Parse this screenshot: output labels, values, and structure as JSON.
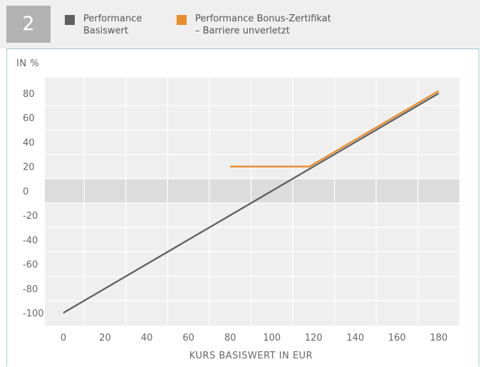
{
  "panel_number": "2",
  "legend": [
    {
      "lines": [
        "Performance",
        "Basiswert"
      ],
      "color": "#5f5f5f"
    },
    {
      "lines": [
        "Performance Bonus-Zertifikat",
        "– Barriere unverletzt"
      ],
      "color": "#e98b2a"
    }
  ],
  "chart_data": {
    "type": "line",
    "ylabel": "IN %",
    "xlabel": "KURS BASISWERT IN EUR",
    "xlim": [
      0,
      180
    ],
    "ylim": [
      -100,
      80
    ],
    "x_ticks": [
      "0",
      "20",
      "40",
      "60",
      "80",
      "100",
      "120",
      "140",
      "160",
      "180"
    ],
    "y_ticks": [
      "80",
      "60",
      "40",
      "20",
      "0",
      "-20",
      "-40",
      "-60",
      "-80",
      "-100"
    ],
    "series": [
      {
        "name": "Performance Basiswert",
        "color": "#5f5f5f",
        "points": [
          [
            0,
            -100
          ],
          [
            180,
            80
          ]
        ]
      },
      {
        "name": "Performance Bonus-Zertifikat – Barriere unverletzt",
        "color": "#e98b2a",
        "points": [
          [
            80,
            20
          ],
          [
            118,
            20
          ],
          [
            180,
            82
          ]
        ]
      }
    ],
    "grid": true,
    "highlight_band": [
      -10,
      10
    ]
  }
}
